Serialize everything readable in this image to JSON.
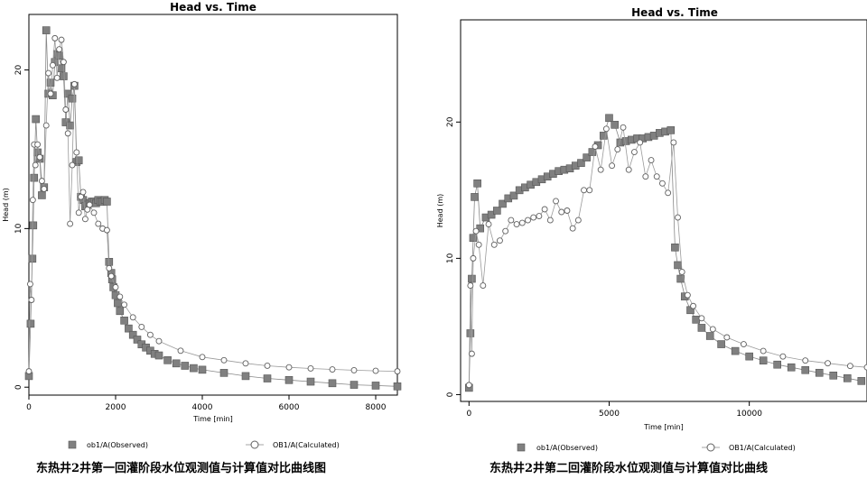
{
  "chart_data": [
    {
      "type": "scatter",
      "title": "Head vs. Time",
      "xlabel": "Time  [min]",
      "ylabel": "Head (m)",
      "xlim": [
        0,
        8500
      ],
      "ylim": [
        -0.5,
        23.5
      ],
      "xticks": [
        0,
        2000,
        4000,
        6000,
        8000
      ],
      "yticks": [
        0,
        10,
        20
      ],
      "legend_position": "bottom",
      "caption": "东热井2井第一回灌阶段水位观测值与计算值对比曲线图",
      "series": [
        {
          "name": "ob1/A(Observed)",
          "marker": "square",
          "color": "#808080",
          "x": [
            0,
            40,
            80,
            100,
            120,
            160,
            200,
            250,
            300,
            350,
            400,
            450,
            500,
            550,
            600,
            650,
            700,
            750,
            800,
            850,
            900,
            950,
            1000,
            1050,
            1100,
            1150,
            1200,
            1250,
            1300,
            1350,
            1400,
            1450,
            1500,
            1550,
            1600,
            1650,
            1700,
            1750,
            1800,
            1850,
            1900,
            1920,
            1950,
            2000,
            2050,
            2100,
            2200,
            2300,
            2400,
            2500,
            2600,
            2700,
            2800,
            2900,
            3000,
            3200,
            3400,
            3600,
            3800,
            4000,
            4500,
            5000,
            5500,
            6000,
            6500,
            7000,
            7500,
            8000,
            8500
          ],
          "y": [
            0.7,
            4.0,
            8.1,
            10.2,
            13.2,
            16.9,
            14.8,
            14.4,
            12.1,
            12.6,
            22.5,
            18.5,
            19.2,
            18.4,
            20.5,
            21.0,
            20.9,
            20.1,
            19.6,
            16.7,
            18.5,
            16.5,
            18.2,
            19.0,
            14.2,
            14.3,
            12.0,
            11.8,
            11.4,
            11.5,
            11.6,
            11.7,
            11.7,
            11.6,
            11.8,
            11.7,
            11.7,
            11.8,
            11.7,
            7.9,
            7.2,
            6.8,
            6.3,
            5.8,
            5.3,
            4.8,
            4.2,
            3.7,
            3.3,
            3.0,
            2.7,
            2.5,
            2.3,
            2.1,
            2.0,
            1.7,
            1.5,
            1.35,
            1.2,
            1.1,
            0.9,
            0.7,
            0.55,
            0.45,
            0.35,
            0.25,
            0.15,
            0.1,
            0.05
          ]
        },
        {
          "name": "OB1/A(Calculated)",
          "marker": "circle",
          "color": "#606060",
          "x": [
            0,
            30,
            60,
            90,
            120,
            150,
            200,
            250,
            300,
            350,
            400,
            450,
            500,
            550,
            600,
            650,
            700,
            750,
            800,
            850,
            900,
            950,
            1000,
            1050,
            1100,
            1150,
            1200,
            1250,
            1300,
            1350,
            1400,
            1500,
            1600,
            1700,
            1800,
            1850,
            1900,
            2000,
            2100,
            2200,
            2400,
            2600,
            2800,
            3000,
            3500,
            4000,
            4500,
            5000,
            5500,
            6000,
            6500,
            7000,
            7500,
            8000,
            8500
          ],
          "y": [
            1.0,
            6.5,
            5.5,
            11.8,
            15.3,
            14.0,
            15.3,
            14.5,
            13.0,
            12.5,
            16.5,
            19.8,
            18.5,
            20.3,
            22.0,
            19.5,
            21.3,
            21.9,
            20.5,
            17.5,
            16.0,
            10.3,
            14.0,
            19.1,
            14.8,
            11.0,
            12.0,
            12.3,
            10.6,
            11.2,
            11.5,
            11.0,
            10.3,
            10.0,
            9.9,
            7.5,
            7.0,
            6.3,
            5.7,
            5.2,
            4.4,
            3.8,
            3.3,
            2.9,
            2.3,
            1.9,
            1.7,
            1.5,
            1.35,
            1.25,
            1.18,
            1.12,
            1.07,
            1.03,
            1.0
          ]
        }
      ]
    },
    {
      "type": "scatter",
      "title": "Head vs. Time",
      "xlabel": "Time  [min]",
      "ylabel": "Head (m)",
      "xlim": [
        -300,
        14200
      ],
      "ylim": [
        -0.5,
        27.5
      ],
      "xticks": [
        0,
        5000,
        10000
      ],
      "yticks": [
        0,
        10,
        20
      ],
      "legend_position": "bottom",
      "caption": "东热井2井第二回灌阶段水位观测值与计算值对比曲线",
      "series": [
        {
          "name": "ob1/A(Observed)",
          "marker": "square",
          "color": "#808080",
          "x": [
            0,
            50,
            100,
            150,
            200,
            300,
            400,
            600,
            800,
            1000,
            1200,
            1400,
            1600,
            1800,
            2000,
            2200,
            2400,
            2600,
            2800,
            3000,
            3200,
            3400,
            3600,
            3800,
            4000,
            4200,
            4400,
            4600,
            4800,
            5000,
            5200,
            5400,
            5600,
            5800,
            6000,
            6200,
            6400,
            6600,
            6800,
            7000,
            7200,
            7350,
            7450,
            7550,
            7700,
            7900,
            8100,
            8300,
            8600,
            9000,
            9500,
            10000,
            10500,
            11000,
            11500,
            12000,
            12500,
            13000,
            13500,
            14000
          ],
          "y": [
            0.5,
            4.5,
            8.5,
            11.5,
            14.5,
            15.5,
            12.2,
            13.0,
            13.2,
            13.5,
            14.0,
            14.4,
            14.6,
            15.0,
            15.2,
            15.4,
            15.6,
            15.8,
            16.0,
            16.2,
            16.4,
            16.5,
            16.6,
            16.8,
            17.0,
            17.4,
            17.8,
            18.3,
            19.0,
            20.3,
            19.8,
            18.5,
            18.6,
            18.7,
            18.8,
            18.8,
            18.9,
            19.0,
            19.2,
            19.3,
            19.4,
            10.8,
            9.5,
            8.5,
            7.2,
            6.2,
            5.5,
            4.9,
            4.3,
            3.7,
            3.2,
            2.8,
            2.5,
            2.2,
            2.0,
            1.8,
            1.6,
            1.4,
            1.2,
            1.0
          ]
        },
        {
          "name": "OB1/A(Calculated)",
          "marker": "circle",
          "color": "#606060",
          "x": [
            0,
            50,
            100,
            150,
            250,
            350,
            500,
            700,
            900,
            1100,
            1300,
            1500,
            1700,
            1900,
            2100,
            2300,
            2500,
            2700,
            2900,
            3100,
            3300,
            3500,
            3700,
            3900,
            4100,
            4300,
            4500,
            4700,
            4900,
            5100,
            5300,
            5500,
            5700,
            5900,
            6100,
            6300,
            6500,
            6700,
            6900,
            7100,
            7300,
            7450,
            7600,
            7800,
            8000,
            8300,
            8700,
            9200,
            9800,
            10500,
            11200,
            12000,
            12800,
            13600,
            14200
          ],
          "y": [
            0.7,
            8.0,
            3.0,
            10.0,
            12.0,
            11.0,
            8.0,
            12.5,
            11.0,
            11.3,
            12.0,
            12.8,
            12.5,
            12.6,
            12.8,
            13.0,
            13.1,
            13.6,
            12.8,
            14.2,
            13.4,
            13.5,
            12.2,
            12.8,
            15.0,
            15.0,
            18.2,
            16.5,
            19.5,
            16.8,
            18.0,
            19.6,
            16.5,
            17.8,
            18.5,
            16.0,
            17.2,
            16.0,
            15.5,
            14.8,
            18.5,
            13.0,
            9.0,
            7.3,
            6.5,
            5.6,
            4.8,
            4.2,
            3.7,
            3.2,
            2.8,
            2.5,
            2.3,
            2.1,
            2.0
          ]
        }
      ]
    }
  ]
}
